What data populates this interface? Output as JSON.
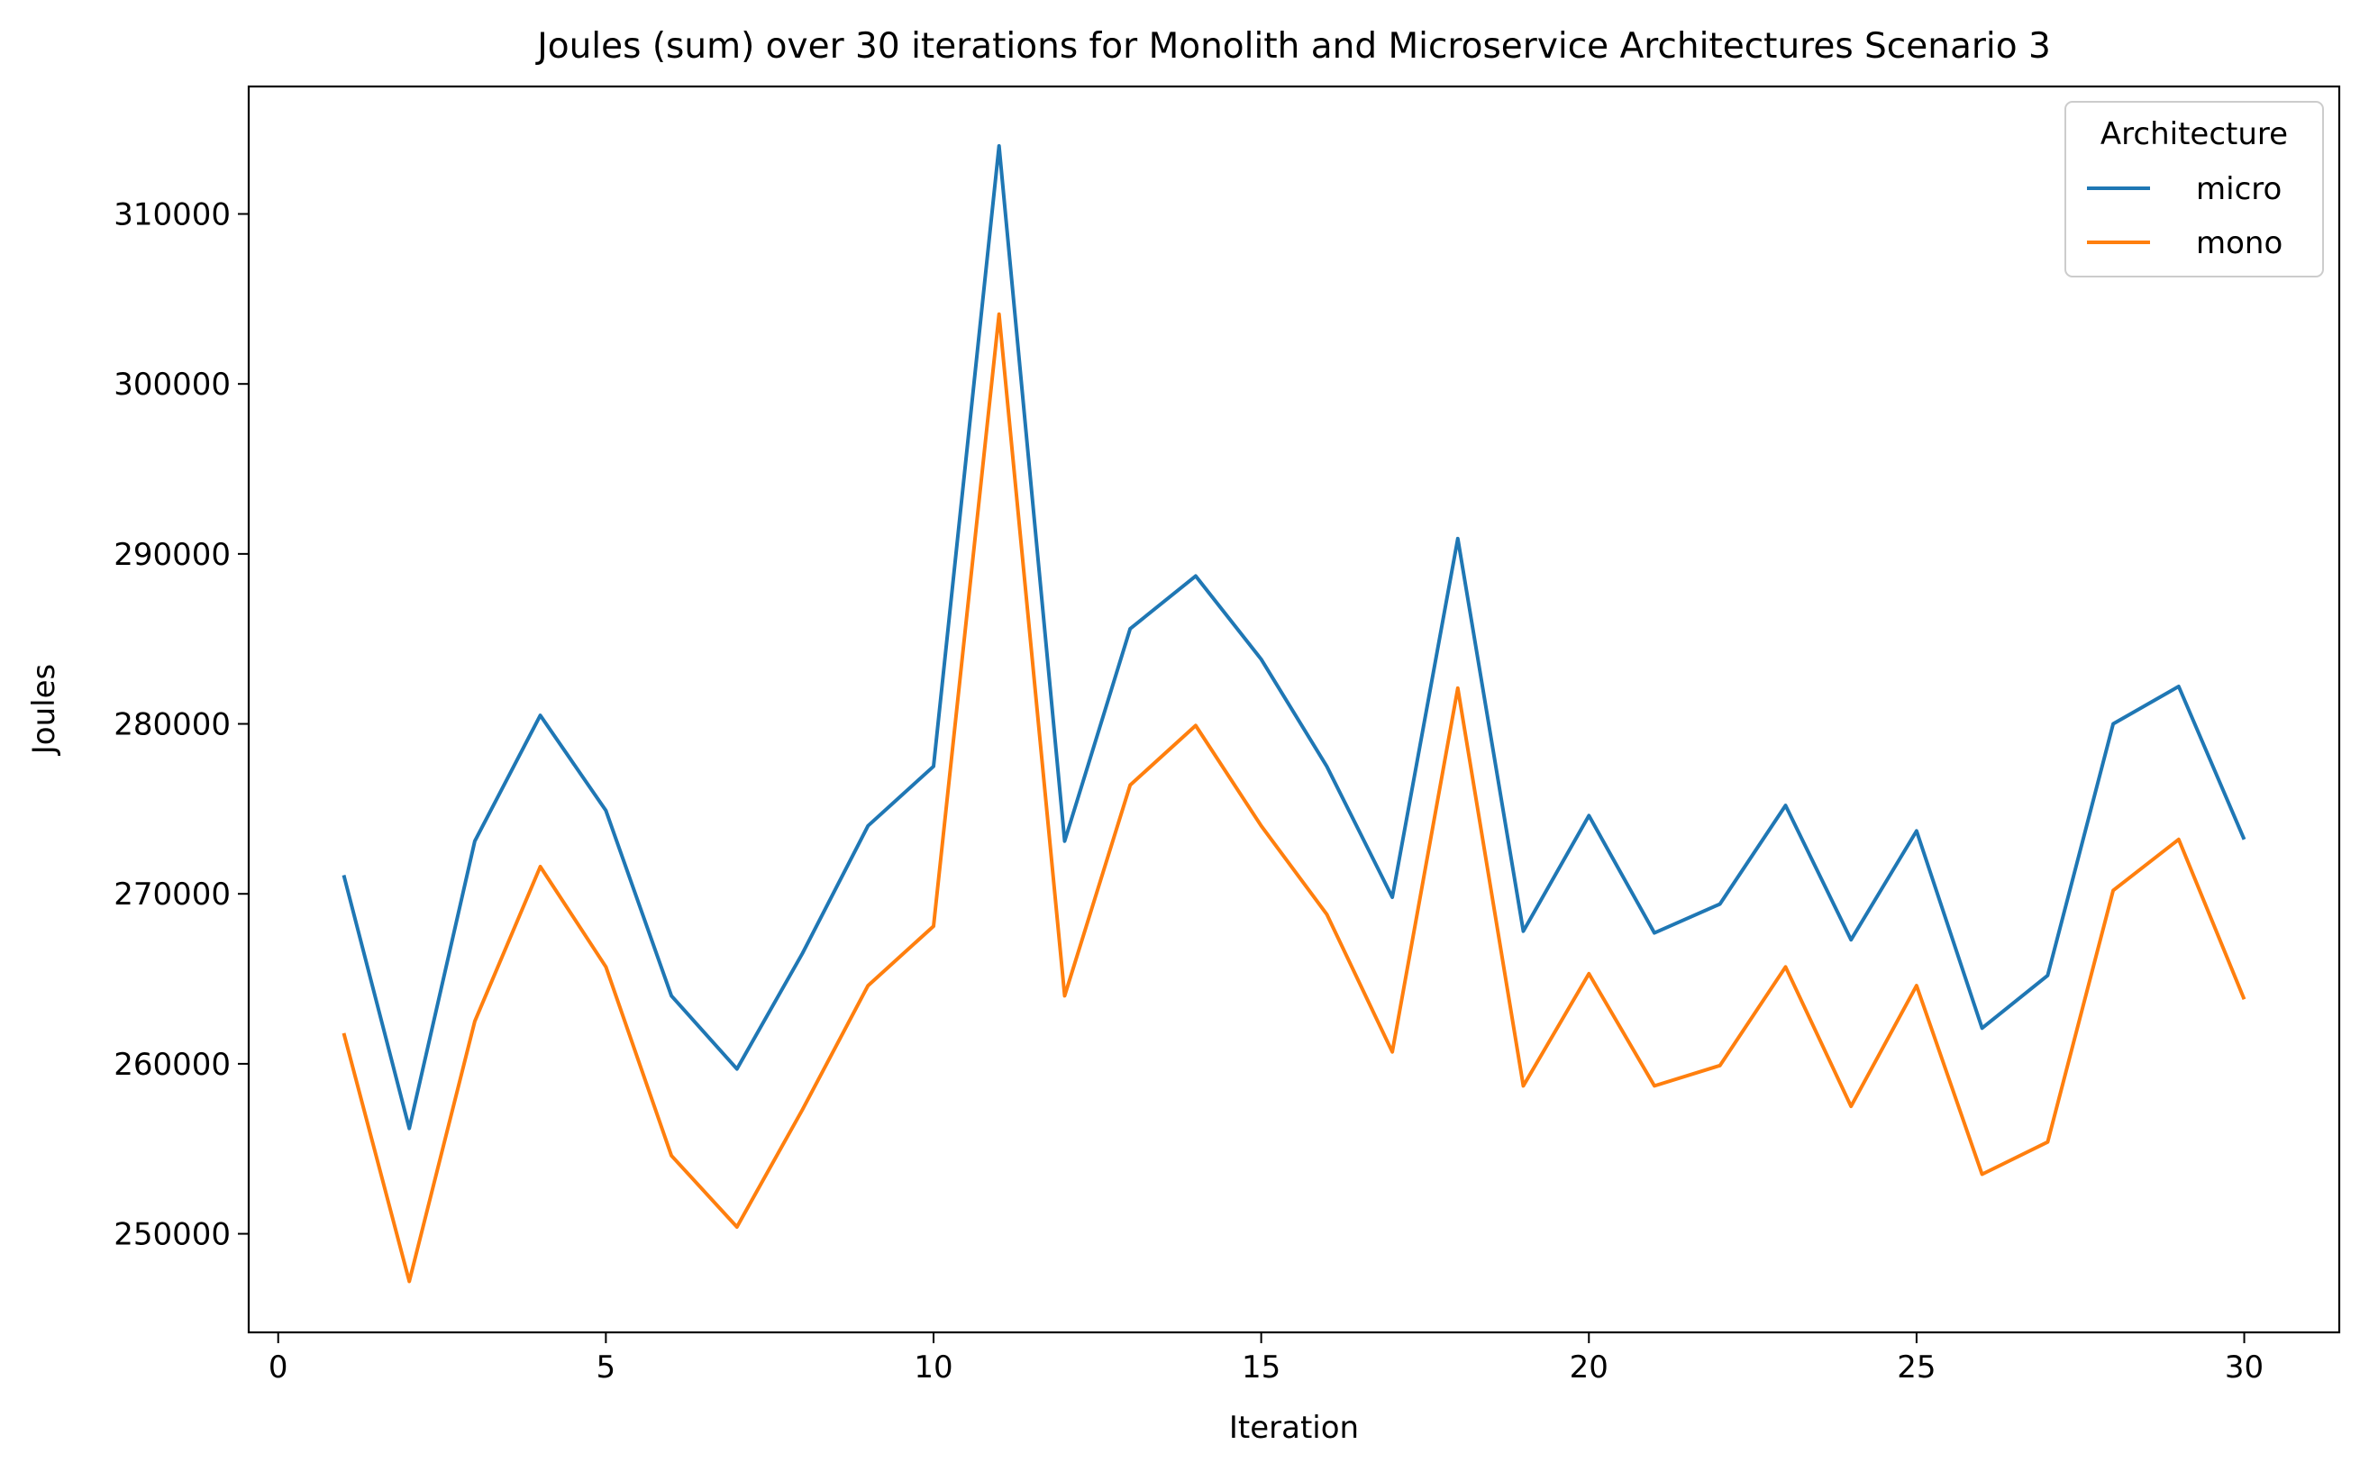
{
  "chart_data": {
    "type": "line",
    "title": "Joules (sum) over 30 iterations for Monolith and Microservice Architectures Scenario 3",
    "xlabel": "Iteration",
    "ylabel": "Joules",
    "xlim": [
      -0.45,
      31.45
    ],
    "ylim": [
      244200,
      317500
    ],
    "x_ticks": [
      0,
      5,
      10,
      15,
      20,
      25,
      30
    ],
    "x_tick_labels": [
      "0",
      "5",
      "10",
      "15",
      "20",
      "25",
      "30"
    ],
    "y_ticks": [
      250000,
      260000,
      270000,
      280000,
      290000,
      300000,
      310000
    ],
    "y_tick_labels": [
      "250000",
      "260000",
      "270000",
      "280000",
      "290000",
      "300000",
      "310000"
    ],
    "grid": false,
    "legend": {
      "title": "Architecture",
      "placement": "top-right"
    },
    "x": [
      1,
      2,
      3,
      4,
      5,
      6,
      7,
      8,
      9,
      10,
      11,
      12,
      13,
      14,
      15,
      16,
      17,
      18,
      19,
      20,
      21,
      22,
      23,
      24,
      25,
      26,
      27,
      28,
      29,
      30
    ],
    "series": [
      {
        "name": "micro",
        "color": "#1f77b4",
        "values": [
          271100,
          256200,
          273100,
          280500,
          274900,
          264000,
          259700,
          266500,
          274000,
          277500,
          314000,
          273100,
          285600,
          288700,
          283800,
          277500,
          269800,
          290900,
          267800,
          274600,
          267700,
          269400,
          275200,
          267300,
          273700,
          262100,
          265200,
          280000,
          282200,
          273200
        ]
      },
      {
        "name": "mono",
        "color": "#ff7f0e",
        "values": [
          261800,
          247200,
          262500,
          271600,
          265700,
          254600,
          250400,
          257300,
          264600,
          268100,
          304100,
          264000,
          276400,
          279900,
          274000,
          268800,
          260700,
          282100,
          258700,
          265300,
          258700,
          259900,
          265700,
          257500,
          264600,
          253500,
          255400,
          270200,
          273200,
          263800
        ]
      }
    ]
  }
}
